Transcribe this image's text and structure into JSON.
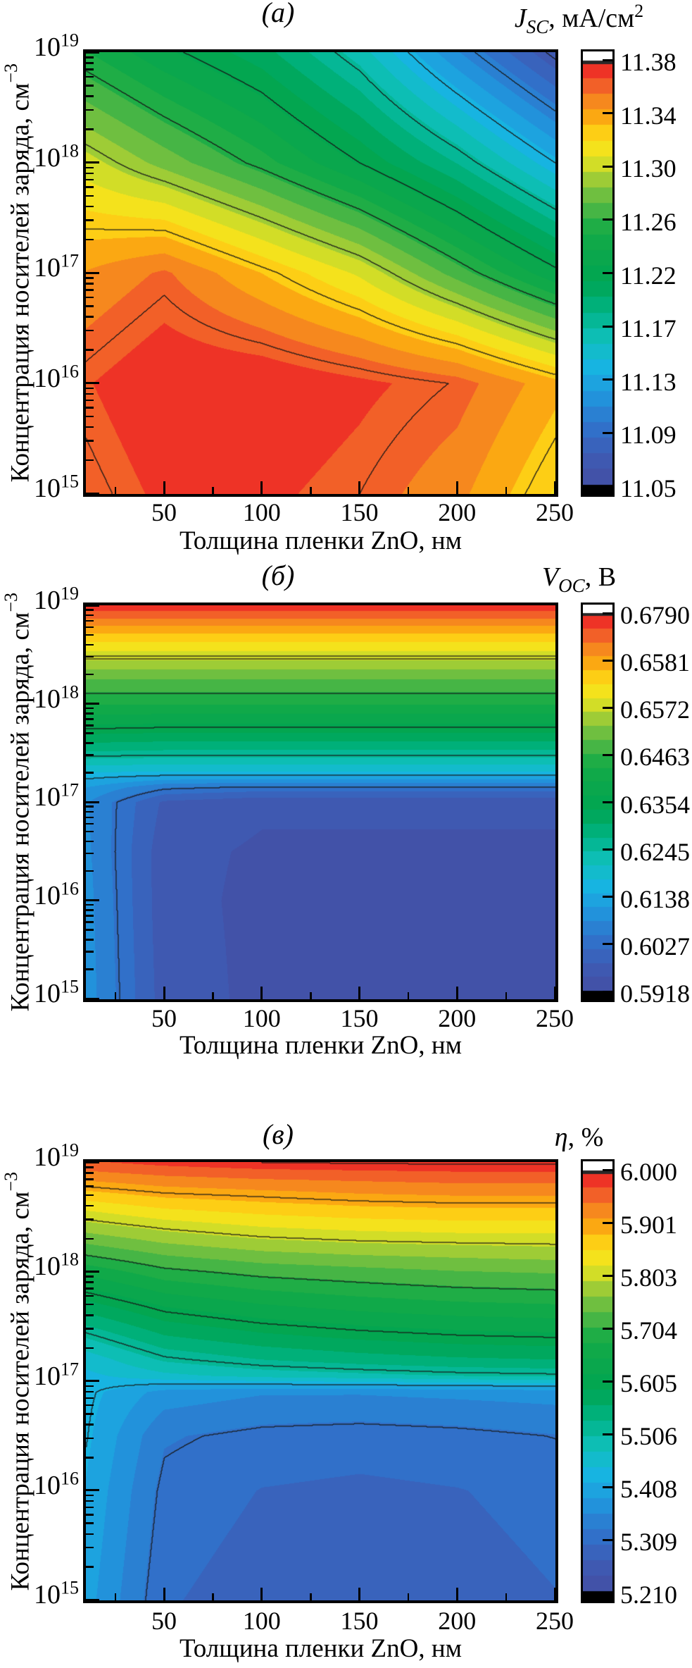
{
  "figure": {
    "background": "#ffffff",
    "text_color": "#000000",
    "panels": [
      {
        "label": "(а)",
        "colorbar_title": {
          "variable": "J",
          "subscript": "SC",
          "rest": ", мА/см",
          "superscript": "2"
        },
        "xlabel": "Толщина пленки ZnO, нм",
        "ylabel": {
          "text": "Концентрация носителей заряда, см",
          "superscript": "−3"
        },
        "x_tick_labels": [
          "50",
          "100",
          "150",
          "200",
          "250"
        ],
        "y_tick_labels": [
          {
            "base": "10",
            "exp": "19"
          },
          {
            "base": "10",
            "exp": "18"
          },
          {
            "base": "10",
            "exp": "17"
          },
          {
            "base": "10",
            "exp": "16"
          },
          {
            "base": "10",
            "exp": "15"
          }
        ],
        "colorbar_tick_labels": [
          "11.38",
          "11.34",
          "11.30",
          "11.26",
          "11.22",
          "11.17",
          "11.13",
          "11.09",
          "11.05"
        ]
      },
      {
        "label": "(б)",
        "colorbar_title": {
          "variable": "V",
          "subscript": "OC",
          "rest": ", В"
        },
        "xlabel": "Толщина пленки ZnO, нм",
        "ylabel": {
          "text": "Концентрация носителей заряда, см",
          "superscript": "−3"
        },
        "x_tick_labels": [
          "50",
          "100",
          "150",
          "200",
          "250"
        ],
        "y_tick_labels": [
          {
            "base": "10",
            "exp": "19"
          },
          {
            "base": "10",
            "exp": "18"
          },
          {
            "base": "10",
            "exp": "17"
          },
          {
            "base": "10",
            "exp": "16"
          },
          {
            "base": "10",
            "exp": "15"
          }
        ],
        "colorbar_tick_labels": [
          "0.6790",
          "0.6581",
          "0.6572",
          "0.6463",
          "0.6354",
          "0.6245",
          "0.6138",
          "0.6027",
          "0.5918"
        ]
      },
      {
        "label": "(в)",
        "colorbar_title": {
          "variable": "η",
          "rest": ", %"
        },
        "xlabel": "Толщина пленки ZnO, нм",
        "ylabel": {
          "text": "Концентрация носителей заряда, см",
          "superscript": "−3"
        },
        "x_tick_labels": [
          "50",
          "100",
          "150",
          "200",
          "250"
        ],
        "y_tick_labels": [
          {
            "base": "10",
            "exp": "19"
          },
          {
            "base": "10",
            "exp": "18"
          },
          {
            "base": "10",
            "exp": "17"
          },
          {
            "base": "10",
            "exp": "16"
          },
          {
            "base": "10",
            "exp": "15"
          }
        ],
        "colorbar_tick_labels": [
          "6.000",
          "5.901",
          "5.803",
          "5.704",
          "5.605",
          "5.506",
          "5.408",
          "5.309",
          "5.210"
        ]
      }
    ]
  },
  "colormap": [
    {
      "t": 0.0,
      "hex": "#444fa3"
    },
    {
      "t": 0.07,
      "hex": "#3e5cb5"
    },
    {
      "t": 0.14,
      "hex": "#2f73cc"
    },
    {
      "t": 0.21,
      "hex": "#2195dd"
    },
    {
      "t": 0.28,
      "hex": "#17b5e1"
    },
    {
      "t": 0.34,
      "hex": "#10c0bd"
    },
    {
      "t": 0.41,
      "hex": "#00b385"
    },
    {
      "t": 0.48,
      "hex": "#00a552"
    },
    {
      "t": 0.6,
      "hex": "#14aa47"
    },
    {
      "t": 0.66,
      "hex": "#52b844"
    },
    {
      "t": 0.71,
      "hex": "#8cc63c"
    },
    {
      "t": 0.75,
      "hex": "#c8db2a"
    },
    {
      "t": 0.79,
      "hex": "#f2e51d"
    },
    {
      "t": 0.83,
      "hex": "#fdd215"
    },
    {
      "t": 0.87,
      "hex": "#fba812"
    },
    {
      "t": 0.91,
      "hex": "#f6861f"
    },
    {
      "t": 0.95,
      "hex": "#f15a29"
    },
    {
      "t": 1.0,
      "hex": "#ed1c24"
    }
  ],
  "colorbar_overflow_top": "#ffffff",
  "colorbar_underflow_bottom": "#000000",
  "chart_data": [
    {
      "type": "heatmap",
      "panel": "а",
      "quantity": "J_SC, мА/см2 (short-circuit current density)",
      "xlabel": "Толщина пленки ZnO, нм",
      "ylabel": "Концентрация носителей заряда, см−3",
      "x_range_nm": [
        10,
        250
      ],
      "y_range_cm3": [
        "1e15",
        "1e19"
      ],
      "y_scale": "log",
      "values_are_estimates": true,
      "grid": {
        "x": [
          10,
          50,
          100,
          150,
          200,
          250
        ],
        "rows": [
          {
            "logy": 19,
            "v": [
              11.25,
              11.225,
              11.2,
              11.16,
              11.1,
              11.045
            ]
          },
          {
            "logy": 18,
            "v": [
              11.31,
              11.285,
              11.255,
              11.22,
              11.18,
              11.13
            ]
          },
          {
            "logy": 17,
            "v": [
              11.36,
              11.375,
              11.345,
              11.315,
              11.27,
              11.225
            ]
          },
          {
            "logy": 16,
            "v": [
              11.385,
              11.4,
              11.4,
              11.39,
              11.379,
              11.35
            ]
          },
          {
            "logy": 15,
            "v": [
              11.375,
              11.39,
              11.39,
              11.38,
              11.363,
              11.33
            ]
          }
        ]
      },
      "scale": {
        "vmin": 11.03,
        "vmax": 11.4
      },
      "contour_levels": [
        11.38,
        11.34,
        11.3,
        11.26,
        11.22,
        11.17,
        11.13,
        11.09,
        11.05
      ],
      "colorbar_ticks": [
        11.38,
        11.34,
        11.3,
        11.26,
        11.22,
        11.17,
        11.13,
        11.09,
        11.05
      ]
    },
    {
      "type": "heatmap",
      "panel": "б",
      "quantity": "V_OC, В (open-circuit voltage)",
      "xlabel": "Толщина пленки ZnO, нм",
      "ylabel": "Концентрация носителей заряда, см−3",
      "x_range_nm": [
        10,
        250
      ],
      "y_range_cm3": [
        "1e15",
        "1e19"
      ],
      "y_scale": "log",
      "values_are_estimates": true,
      "grid": {
        "x": [
          10,
          50,
          100,
          150,
          200,
          250
        ],
        "rows": [
          {
            "logy": 19.0,
            "v": [
              0.679,
              0.679,
              0.679,
              0.679,
              0.679,
              0.679
            ]
          },
          {
            "logy": 18.85,
            "v": [
              0.6725,
              0.6725,
              0.6725,
              0.6725,
              0.6725,
              0.6725
            ]
          },
          {
            "logy": 18.7,
            "v": [
              0.666,
              0.666,
              0.666,
              0.666,
              0.666,
              0.666
            ]
          },
          {
            "logy": 18.55,
            "v": [
              0.6605,
              0.6605,
              0.6605,
              0.6605,
              0.6605,
              0.6605
            ]
          },
          {
            "logy": 18.4,
            "v": [
              0.655,
              0.655,
              0.655,
              0.655,
              0.655,
              0.655
            ]
          },
          {
            "logy": 18.25,
            "v": [
              0.65,
              0.65,
              0.65,
              0.65,
              0.65,
              0.65
            ]
          },
          {
            "logy": 18.0,
            "v": [
              0.6435,
              0.6435,
              0.6435,
              0.6435,
              0.6435,
              0.6435
            ]
          },
          {
            "logy": 17.75,
            "v": [
              0.6355,
              0.635,
              0.635,
              0.635,
              0.635,
              0.635
            ]
          },
          {
            "logy": 17.5,
            "v": [
              0.626,
              0.6255,
              0.6255,
              0.6255,
              0.6255,
              0.6255
            ]
          },
          {
            "logy": 17.3,
            "v": [
              0.6165,
              0.616,
              0.616,
              0.616,
              0.616,
              0.616
            ]
          },
          {
            "logy": 17.15,
            "v": [
              0.61,
              0.6035,
              0.602,
              0.602,
              0.602,
              0.602
            ]
          },
          {
            "logy": 17.0,
            "v": [
              0.607,
              0.596,
              0.594,
              0.594,
              0.594,
              0.594
            ]
          },
          {
            "logy": 16.5,
            "v": [
              0.6075,
              0.5945,
              0.5928,
              0.5928,
              0.5928,
              0.5928
            ]
          },
          {
            "logy": 16.0,
            "v": [
              0.608,
              0.5945,
              0.5925,
              0.5925,
              0.5925,
              0.5925
            ]
          },
          {
            "logy": 15.0,
            "v": [
              0.6085,
              0.595,
              0.5925,
              0.5925,
              0.5925,
              0.5925
            ]
          }
        ]
      },
      "scale": {
        "vmin": 0.59,
        "vmax": 0.68
      },
      "contour_levels": [
        0.679,
        0.6581,
        0.6572,
        0.6463,
        0.6354,
        0.6245,
        0.6138,
        0.6027,
        0.5918
      ],
      "colorbar_ticks": [
        0.679,
        0.6581,
        0.6572,
        0.6463,
        0.6354,
        0.6245,
        0.6138,
        0.6027,
        0.5918
      ]
    },
    {
      "type": "heatmap",
      "panel": "в",
      "quantity": "η, % (efficiency)",
      "xlabel": "Толщина пленки ZnO, нм",
      "ylabel": "Концентрация носителей заряда, см−3",
      "x_range_nm": [
        10,
        250
      ],
      "y_range_cm3": [
        "1e15",
        "1e19"
      ],
      "y_scale": "log",
      "values_are_estimates": true,
      "grid": {
        "x": [
          10,
          50,
          100,
          150,
          200,
          250
        ],
        "rows": [
          {
            "logy": 19.0,
            "v": [
              5.975,
              5.99,
              6.0,
              6.003,
              6.005,
              6.005
            ]
          },
          {
            "logy": 18.85,
            "v": [
              5.925,
              5.94,
              5.95,
              5.955,
              5.96,
              5.96
            ]
          },
          {
            "logy": 18.7,
            "v": [
              5.875,
              5.895,
              5.905,
              5.915,
              5.92,
              5.92
            ]
          },
          {
            "logy": 18.55,
            "v": [
              5.825,
              5.85,
              5.865,
              5.875,
              5.88,
              5.88
            ]
          },
          {
            "logy": 18.4,
            "v": [
              5.78,
              5.805,
              5.825,
              5.835,
              5.84,
              5.84
            ]
          },
          {
            "logy": 18.2,
            "v": [
              5.72,
              5.75,
              5.77,
              5.78,
              5.785,
              5.79
            ]
          },
          {
            "logy": 18.0,
            "v": [
              5.655,
              5.695,
              5.715,
              5.725,
              5.735,
              5.74
            ]
          },
          {
            "logy": 17.7,
            "v": [
              5.575,
              5.62,
              5.645,
              5.66,
              5.67,
              5.675
            ]
          },
          {
            "logy": 17.4,
            "v": [
              5.495,
              5.55,
              5.575,
              5.59,
              5.6,
              5.605
            ]
          },
          {
            "logy": 17.2,
            "v": [
              5.445,
              5.5,
              5.525,
              5.54,
              5.55,
              5.555
            ]
          },
          {
            "logy": 17.05,
            "v": [
              5.425,
              5.455,
              5.475,
              5.485,
              5.495,
              5.5
            ]
          },
          {
            "logy": 16.9,
            "v": [
              5.415,
              5.36,
              5.345,
              5.345,
              5.35,
              5.355
            ]
          },
          {
            "logy": 16.5,
            "v": [
              5.41,
              5.315,
              5.3,
              5.295,
              5.3,
              5.31
            ]
          },
          {
            "logy": 16.0,
            "v": [
              5.4,
              5.3,
              5.28,
              5.275,
              5.28,
              5.29
            ]
          },
          {
            "logy": 15.0,
            "v": [
              5.385,
              5.285,
              5.265,
              5.26,
              5.27,
              5.28
            ]
          }
        ]
      },
      "scale": {
        "vmin": 5.19,
        "vmax": 6.01
      },
      "contour_levels": [
        6.0,
        5.901,
        5.803,
        5.704,
        5.605,
        5.506,
        5.408,
        5.309,
        5.21
      ],
      "colorbar_ticks": [
        6.0,
        5.901,
        5.803,
        5.704,
        5.605,
        5.506,
        5.408,
        5.309,
        5.21
      ]
    }
  ]
}
